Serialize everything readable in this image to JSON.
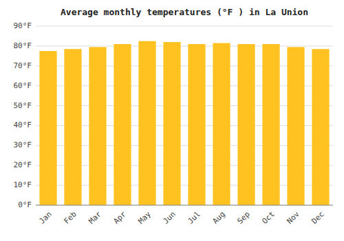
{
  "chart_data": {
    "type": "bar",
    "title": "Average monthly temperatures (°F ) in La Union",
    "categories": [
      "Jan",
      "Feb",
      "Mar",
      "Apr",
      "May",
      "Jun",
      "Jul",
      "Aug",
      "Sep",
      "Oct",
      "Nov",
      "Dec"
    ],
    "values": [
      77.5,
      78.5,
      79.5,
      81.0,
      82.5,
      82.0,
      81.0,
      81.5,
      81.0,
      81.0,
      79.5,
      78.5
    ],
    "color": "#FFC220",
    "ylim": [
      0,
      90
    ],
    "yticks": [
      {
        "value": 0,
        "label": "0°F"
      },
      {
        "value": 10,
        "label": "10°F"
      },
      {
        "value": 20,
        "label": "20°F"
      },
      {
        "value": 30,
        "label": "30°F"
      },
      {
        "value": 40,
        "label": "40°F"
      },
      {
        "value": 50,
        "label": "50°F"
      },
      {
        "value": 60,
        "label": "60°F"
      },
      {
        "value": 70,
        "label": "70°F"
      },
      {
        "value": 80,
        "label": "80°F"
      },
      {
        "value": 90,
        "label": "90°F"
      }
    ],
    "grid": true
  }
}
